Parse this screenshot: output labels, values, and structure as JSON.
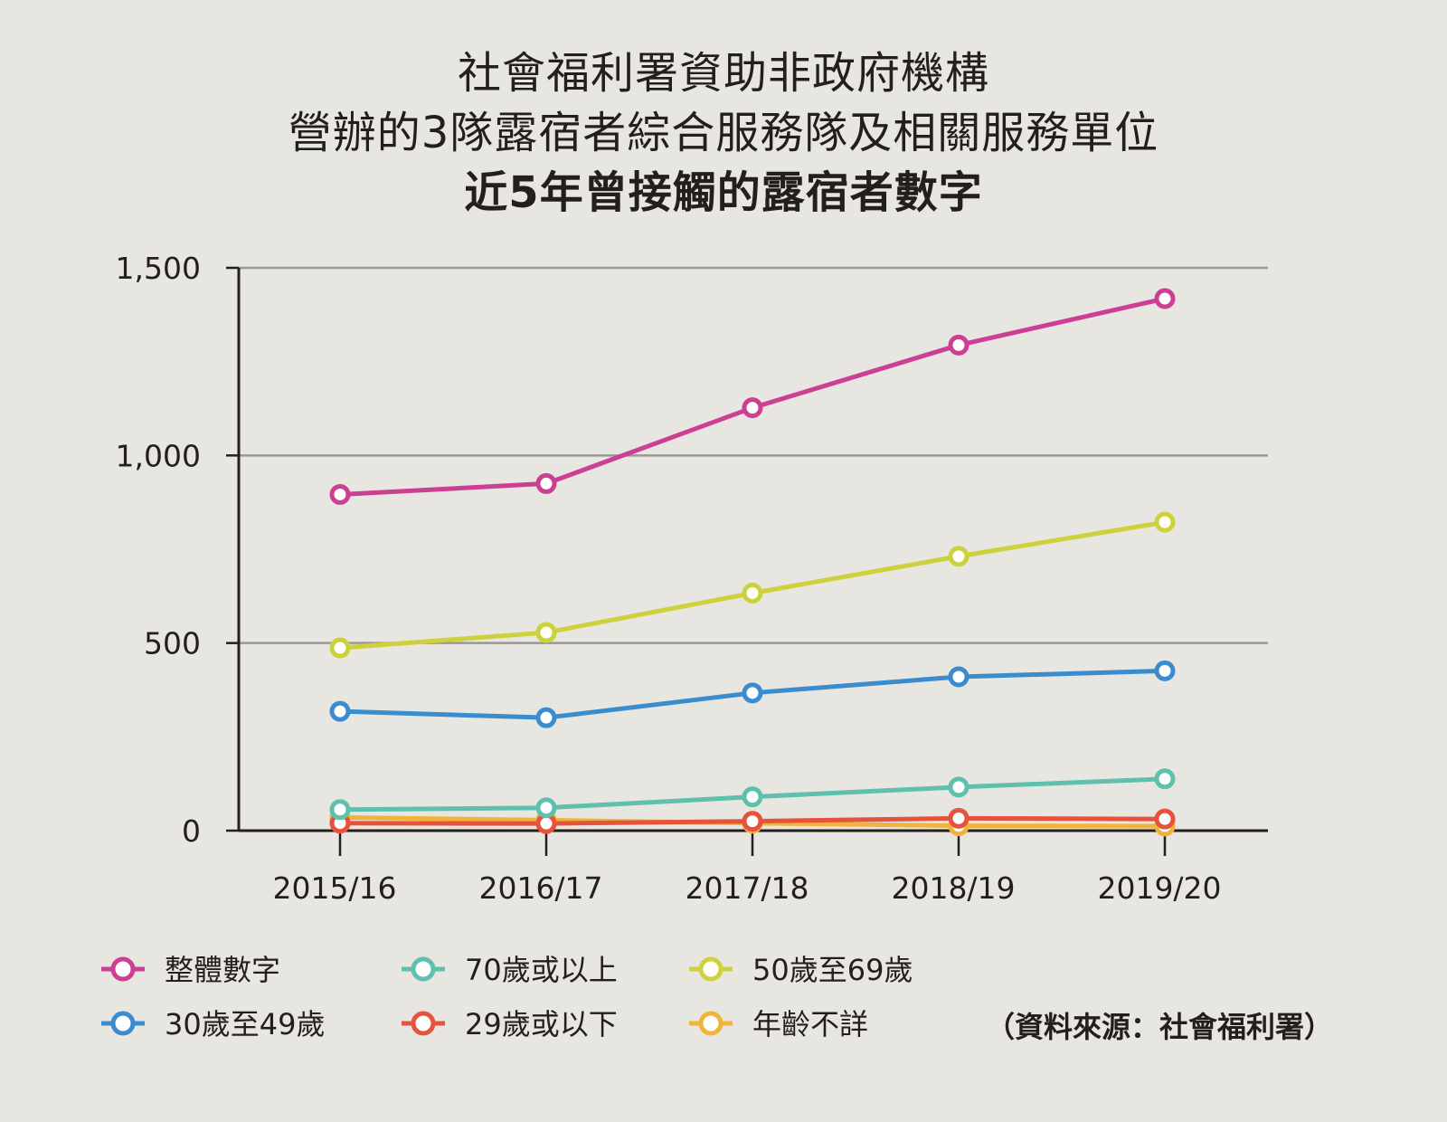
{
  "chart_data": {
    "type": "line",
    "title": [
      "社會福利署資助非政府機構",
      "營辦的3隊露宿者綜合服務隊及相關服務單位",
      "近5年曾接觸的露宿者數字"
    ],
    "categories": [
      "2015/16",
      "2016/17",
      "2017/18",
      "2018/19",
      "2019/20"
    ],
    "ylim": [
      0,
      1500
    ],
    "yticks": [
      0,
      500,
      1000,
      1500
    ],
    "ytick_labels": [
      "0",
      "500",
      "1,000",
      "1,500"
    ],
    "grid": true,
    "legend_position": "bottom",
    "series": [
      {
        "name": "年齡不詳",
        "color": "#f0b43c",
        "values": [
          35,
          28,
          20,
          13,
          12
        ]
      },
      {
        "name": "29歲或以下",
        "color": "#e5533d",
        "values": [
          20,
          19,
          25,
          33,
          31
        ]
      },
      {
        "name": "70歲或以上",
        "color": "#5fc0ae",
        "values": [
          56,
          61,
          90,
          116,
          138
        ]
      },
      {
        "name": "30歲至49歲",
        "color": "#3a8ccf",
        "values": [
          318,
          301,
          367,
          410,
          426
        ]
      },
      {
        "name": "50歲至69歲",
        "color": "#cdd23c",
        "values": [
          487,
          528,
          633,
          731,
          822
        ]
      },
      {
        "name": "整體數字",
        "color": "#cc3f93",
        "values": [
          896,
          925,
          1127,
          1294,
          1418
        ]
      }
    ],
    "legend_order": [
      "整體數字",
      "70歲或以上",
      "50歲至69歲",
      "30歲至49歲",
      "29歲或以下",
      "年齡不詳"
    ]
  },
  "source": "（資料來源：社會福利署）"
}
